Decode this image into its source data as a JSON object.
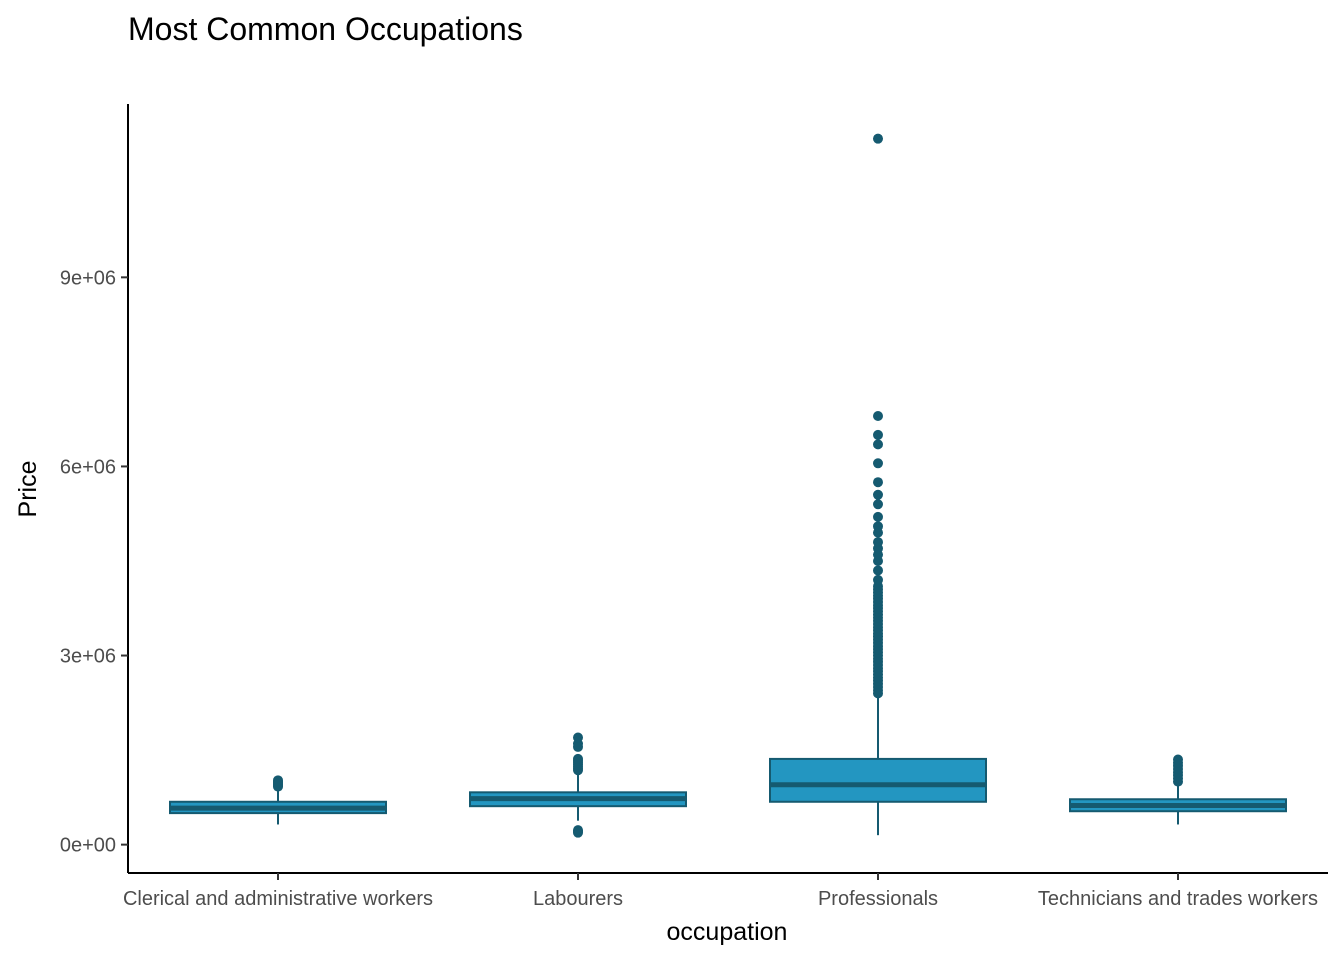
{
  "chart_data": {
    "type": "boxplot",
    "title": "Most Common Occupations",
    "xlabel": "occupation",
    "ylabel": "Price",
    "ylim": [
      -450000,
      11750000
    ],
    "yticks": [
      {
        "value": 0,
        "label": "0e+00"
      },
      {
        "value": 3000000,
        "label": "3e+06"
      },
      {
        "value": 6000000,
        "label": "6e+06"
      },
      {
        "value": 9000000,
        "label": "9e+06"
      }
    ],
    "grid": false,
    "legend": "none",
    "colors": {
      "fill": "#2396c1",
      "stroke": "#155a70",
      "axis": "#000000"
    },
    "categories": [
      "Clerical and administrative workers",
      "Labourers",
      "Professionals",
      "Technicians and trades workers"
    ],
    "boxes": [
      {
        "lower_whisker": 320000,
        "q1": 500000,
        "median": 580000,
        "q3": 680000,
        "upper_whisker": 900000,
        "outliers": [
          920000,
          940000,
          960000,
          980000,
          1000000,
          1020000
        ]
      },
      {
        "lower_whisker": 380000,
        "q1": 610000,
        "median": 730000,
        "q3": 830000,
        "upper_whisker": 1150000,
        "outliers": [
          1180000,
          1210000,
          1240000,
          1270000,
          1300000,
          1330000,
          1360000,
          1550000,
          1600000,
          1700000,
          230000,
          210000,
          190000
        ]
      },
      {
        "lower_whisker": 150000,
        "q1": 680000,
        "median": 950000,
        "q3": 1360000,
        "upper_whisker": 2380000,
        "outliers": [
          2400000,
          2450000,
          2500000,
          2550000,
          2600000,
          2650000,
          2700000,
          2750000,
          2800000,
          2850000,
          2900000,
          2950000,
          3000000,
          3050000,
          3100000,
          3150000,
          3200000,
          3250000,
          3300000,
          3350000,
          3400000,
          3450000,
          3500000,
          3550000,
          3600000,
          3650000,
          3700000,
          3750000,
          3800000,
          3850000,
          3900000,
          3950000,
          4000000,
          4050000,
          4100000,
          4200000,
          4350000,
          4500000,
          4600000,
          4700000,
          4800000,
          4950000,
          5050000,
          5200000,
          5400000,
          5550000,
          5750000,
          6050000,
          6350000,
          6500000,
          6800000,
          11200000
        ]
      },
      {
        "lower_whisker": 320000,
        "q1": 530000,
        "median": 620000,
        "q3": 720000,
        "upper_whisker": 970000,
        "outliers": [
          1000000,
          1050000,
          1100000,
          1150000,
          1200000,
          1250000,
          1300000,
          1350000
        ]
      }
    ]
  }
}
